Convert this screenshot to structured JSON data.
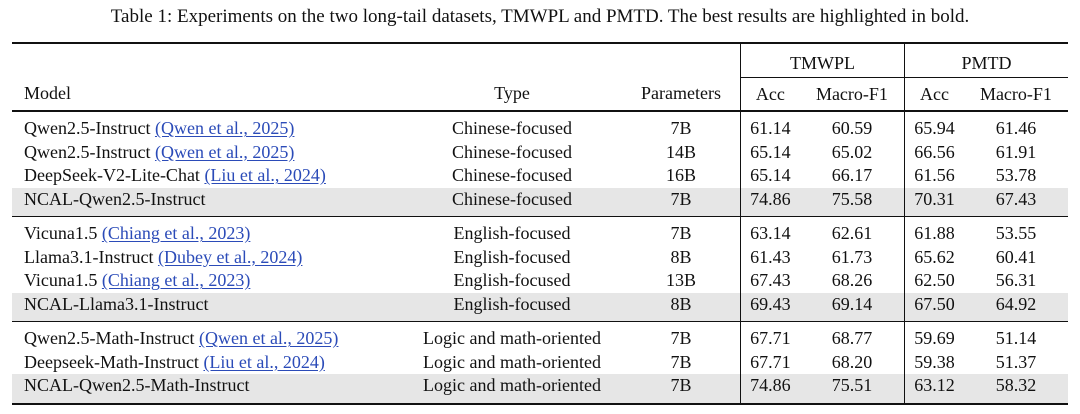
{
  "caption": "Table 1: Experiments on the two long-tail datasets, TMWPL and PMTD. The best results are highlighted in bold.",
  "groups": [
    "TMWPL",
    "PMTD"
  ],
  "columns": [
    "Model",
    "Type",
    "Parameters",
    "Acc",
    "Macro-F1",
    "Acc",
    "Macro-F1"
  ],
  "rows": [
    {
      "model": "Qwen2.5-Instruct",
      "cite": "(Qwen et al., 2025)",
      "type": "Chinese-focused",
      "params": "7B",
      "tm_acc": "61.14",
      "tm_f1": "60.59",
      "pm_acc": "65.94",
      "pm_f1": "61.46"
    },
    {
      "model": "Qwen2.5-Instruct",
      "cite": "(Qwen et al., 2025)",
      "type": "Chinese-focused",
      "params": "14B",
      "tm_acc": "65.14",
      "tm_f1": "65.02",
      "pm_acc": "66.56",
      "pm_f1": "61.91"
    },
    {
      "model": "DeepSeek-V2-Lite-Chat",
      "cite": "(Liu et al., 2024)",
      "type": "Chinese-focused",
      "params": "16B",
      "tm_acc": "65.14",
      "tm_f1": "66.17",
      "pm_acc": "61.56",
      "pm_f1": "53.78"
    },
    {
      "model": "NCAL-Qwen2.5-Instruct",
      "cite": "",
      "type": "Chinese-focused",
      "params": "7B",
      "tm_acc": "74.86",
      "tm_f1": "75.58",
      "pm_acc": "70.31",
      "pm_f1": "67.43"
    },
    {
      "model": "Vicuna1.5",
      "cite": "(Chiang et al., 2023)",
      "type": "English-focused",
      "params": "7B",
      "tm_acc": "63.14",
      "tm_f1": "62.61",
      "pm_acc": "61.88",
      "pm_f1": "53.55"
    },
    {
      "model": "Llama3.1-Instruct",
      "cite": "(Dubey et al., 2024)",
      "type": "English-focused",
      "params": "8B",
      "tm_acc": "61.43",
      "tm_f1": "61.73",
      "pm_acc": "65.62",
      "pm_f1": "60.41"
    },
    {
      "model": "Vicuna1.5",
      "cite": "(Chiang et al., 2023)",
      "type": "English-focused",
      "params": "13B",
      "tm_acc": "67.43",
      "tm_f1": "68.26",
      "pm_acc": "62.50",
      "pm_f1": "56.31"
    },
    {
      "model": "NCAL-Llama3.1-Instruct",
      "cite": "",
      "type": "English-focused",
      "params": "8B",
      "tm_acc": "69.43",
      "tm_f1": "69.14",
      "pm_acc": "67.50",
      "pm_f1": "64.92"
    },
    {
      "model": "Qwen2.5-Math-Instruct",
      "cite": "(Qwen et al., 2025)",
      "type": "Logic and math-oriented",
      "params": "7B",
      "tm_acc": "67.71",
      "tm_f1": "68.77",
      "pm_acc": "59.69",
      "pm_f1": "51.14"
    },
    {
      "model": "Deepseek-Math-Instruct",
      "cite": "(Liu et al., 2024)",
      "type": "Logic and math-oriented",
      "params": "7B",
      "tm_acc": "67.71",
      "tm_f1": "68.20",
      "pm_acc": "59.38",
      "pm_f1": "51.37"
    },
    {
      "model": "NCAL-Qwen2.5-Math-Instruct",
      "cite": "",
      "type": "Logic and math-oriented",
      "params": "7B",
      "tm_acc": "74.86",
      "tm_f1": "75.51",
      "pm_acc": "63.12",
      "pm_f1": "58.32"
    }
  ]
}
